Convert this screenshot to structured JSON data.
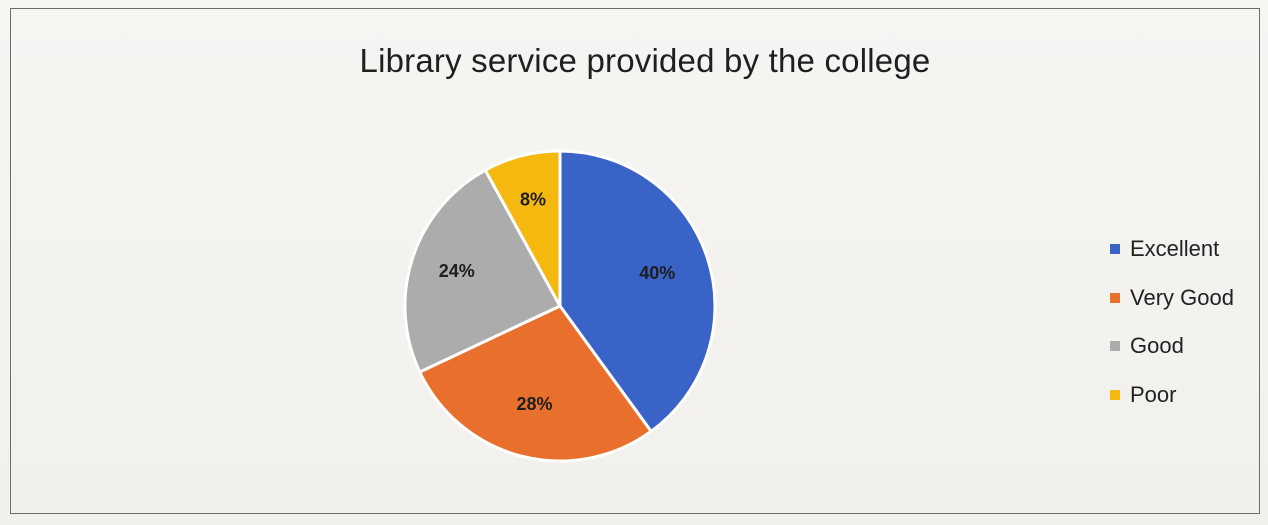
{
  "chart_data": {
    "type": "pie",
    "title": "Library service provided by the college",
    "categories": [
      "Excellent",
      "Very Good",
      "Good",
      "Poor"
    ],
    "values": [
      40,
      28,
      24,
      8
    ],
    "labels": [
      "40%",
      "28%",
      "24%",
      "8%"
    ],
    "colors": [
      "#3a63c7",
      "#e8702c",
      "#acacac",
      "#f4b80e"
    ],
    "legend_position": "right"
  }
}
